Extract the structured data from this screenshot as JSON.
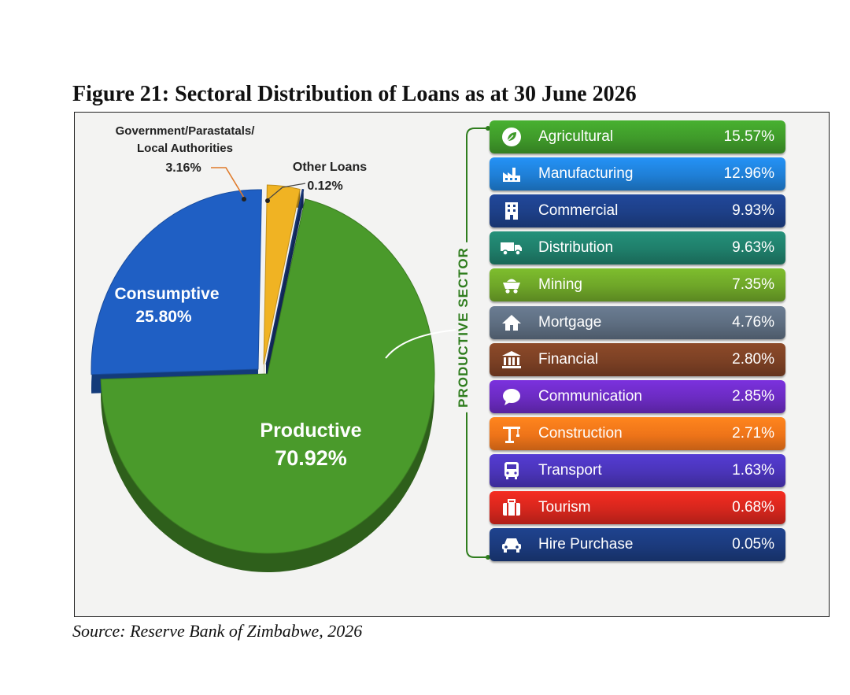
{
  "figure": {
    "title": "Figure 21: Sectoral Distribution of Loans as at 30 June 2026",
    "source": "Source: Reserve Bank of Zimbabwe, 2026"
  },
  "chart_data": [
    {
      "type": "pie",
      "title": "",
      "slices": [
        {
          "label": "Productive",
          "value": 70.92,
          "display": "70.92%",
          "color": "#4a9a2b"
        },
        {
          "label": "Consumptive",
          "value": 25.8,
          "display": "25.80%",
          "color": "#1f5fc4"
        },
        {
          "label_lines": [
            "Government/Parastatals/",
            "Local Authorities"
          ],
          "value": 3.16,
          "display": "3.16%",
          "color": "#f0b323"
        },
        {
          "label": "Other Loans",
          "value": 0.12,
          "display": "0.12%",
          "color": "#1c3f8a"
        }
      ]
    },
    {
      "type": "table",
      "group_label": "PRODUCTIVE SECTOR",
      "rows": [
        {
          "name": "Agricultural",
          "value": 15.57,
          "display": "15.57%",
          "icon": "leaf-icon",
          "color": "#3f9a2a"
        },
        {
          "name": "Manufacturing",
          "value": 12.96,
          "display": "12.96%",
          "icon": "factory-icon",
          "color": "#1f7fd6"
        },
        {
          "name": "Commercial",
          "value": 9.93,
          "display": "9.93%",
          "icon": "building-icon",
          "color": "#1d3f87"
        },
        {
          "name": "Distribution",
          "value": 9.63,
          "display": "9.63%",
          "icon": "truck-icon",
          "color": "#1f7e6a"
        },
        {
          "name": "Mining",
          "value": 7.35,
          "display": "7.35%",
          "icon": "mine-cart-icon",
          "color": "#6ea528"
        },
        {
          "name": "Mortgage",
          "value": 4.76,
          "display": "4.76%",
          "icon": "house-icon",
          "color": "#5d6d80"
        },
        {
          "name": "Financial",
          "value": 2.8,
          "display": "2.80%",
          "icon": "bank-icon",
          "color": "#7b4024"
        },
        {
          "name": "Communication",
          "value": 2.85,
          "display": "2.85%",
          "icon": "chat-bubble-icon",
          "color": "#6b2bc1"
        },
        {
          "name": "Construction",
          "value": 2.71,
          "display": "2.71%",
          "icon": "crane-icon",
          "color": "#ee7419"
        },
        {
          "name": "Transport",
          "value": 1.63,
          "display": "1.63%",
          "icon": "bus-icon",
          "color": "#4a34b8"
        },
        {
          "name": "Tourism",
          "value": 0.68,
          "display": "0.68%",
          "icon": "suitcase-icon",
          "color": "#d5261d"
        },
        {
          "name": "Hire Purchase",
          "value": 0.05,
          "display": "0.05%",
          "icon": "car-icon",
          "color": "#1b3a7c"
        }
      ]
    }
  ]
}
